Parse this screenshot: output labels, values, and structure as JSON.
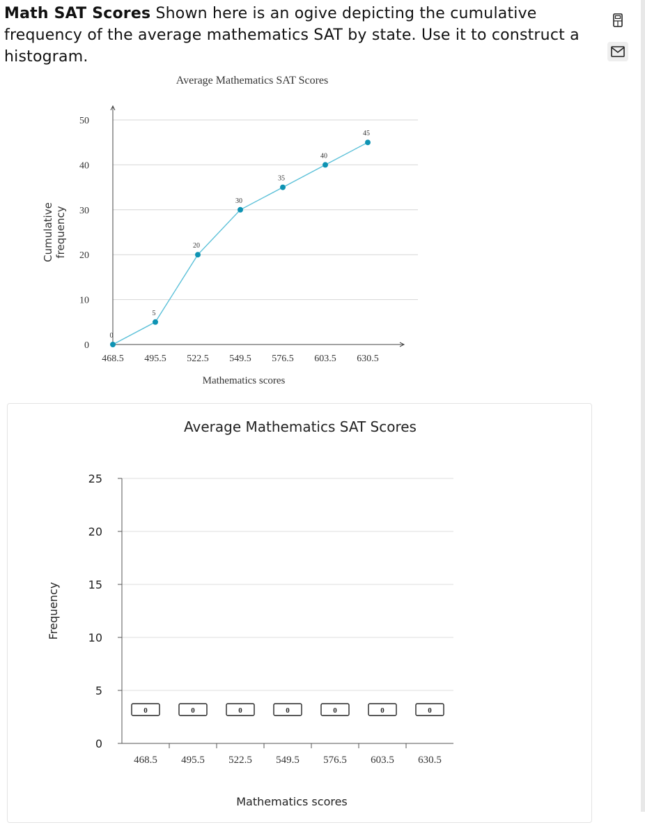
{
  "problem": {
    "title": "Math SAT Scores",
    "text": "Shown here is an ogive depicting the cumulative frequency of the average mathematics SAT by state. Use it to construct a histogram."
  },
  "icons": [
    "calculator-icon",
    "mail-icon"
  ],
  "chart_data": [
    {
      "type": "line",
      "title": "Average Mathematics SAT Scores",
      "xlabel": "Mathematics scores",
      "ylabel": "Cumulative frequency",
      "x": [
        "468.5",
        "495.5",
        "522.5",
        "549.5",
        "576.5",
        "603.5",
        "630.5"
      ],
      "values": [
        0,
        5,
        20,
        30,
        35,
        40,
        45
      ],
      "ylim": [
        0,
        50
      ],
      "yticks": [
        0,
        10,
        20,
        30,
        40,
        50
      ],
      "grid": true,
      "color": "#5bc0d8",
      "point_color": "#0e93b3"
    },
    {
      "type": "bar",
      "title": "Average Mathematics SAT Scores",
      "xlabel": "Mathematics scores",
      "ylabel": "Frequency",
      "categories": [
        "468.5",
        "495.5",
        "522.5",
        "549.5",
        "576.5",
        "603.5",
        "630.5"
      ],
      "values": [
        0,
        0,
        0,
        0,
        0,
        0,
        0
      ],
      "ylim": [
        0,
        25
      ],
      "yticks": [
        0,
        5,
        10,
        15,
        20,
        25
      ],
      "grid": true
    }
  ]
}
